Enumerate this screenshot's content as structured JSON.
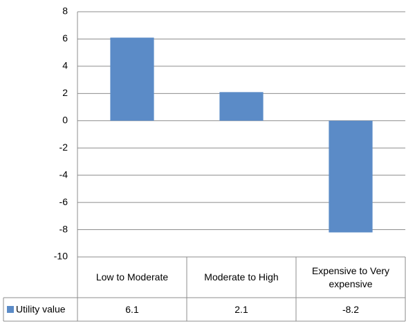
{
  "chart_data": {
    "type": "bar",
    "categories": [
      "Low to Moderate",
      "Moderate to High",
      "Expensive to Very expensive"
    ],
    "series": [
      {
        "name": "Utility value",
        "color": "#5b8bc7",
        "values": [
          6.1,
          2.1,
          -8.2
        ]
      }
    ],
    "ylim": [
      -10,
      8
    ],
    "yticks": [
      -10,
      -8,
      -6,
      -4,
      -2,
      0,
      2,
      4,
      6,
      8
    ],
    "grid": true,
    "data_table": true
  }
}
